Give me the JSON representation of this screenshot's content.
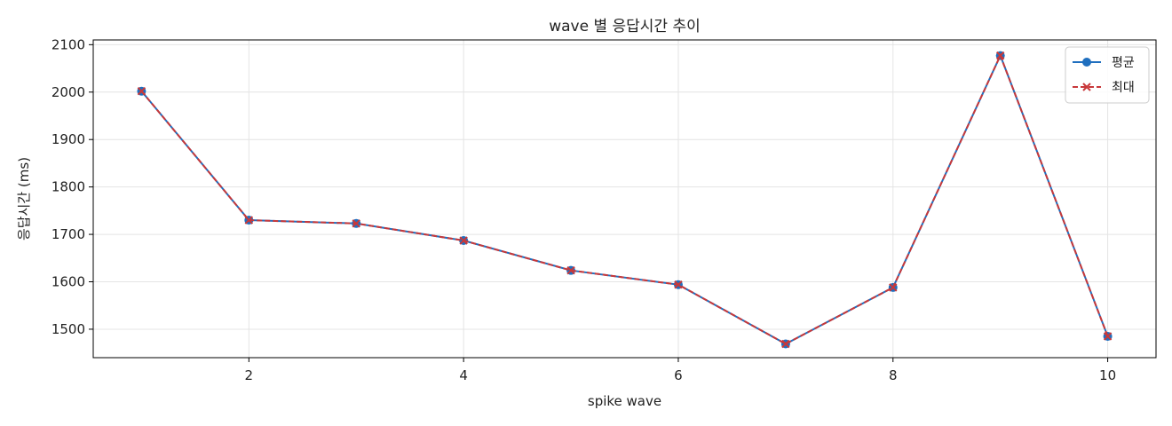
{
  "chart_data": {
    "type": "line",
    "title": "wave 별 응답시간 추이",
    "xlabel": "spike wave",
    "ylabel": "응답시간 (ms)",
    "x": [
      1,
      2,
      3,
      4,
      5,
      6,
      7,
      8,
      9,
      10
    ],
    "xlim": [
      0.55,
      10.45
    ],
    "ylim": [
      1440,
      2110
    ],
    "xticks": [
      2,
      4,
      6,
      8,
      10
    ],
    "yticks": [
      1500,
      1600,
      1700,
      1800,
      1900,
      2000,
      2100
    ],
    "grid": true,
    "legend_position": "top-right",
    "series": [
      {
        "name": "평균",
        "values": [
          2002,
          1730,
          1723,
          1687,
          1624,
          1594,
          1469,
          1588,
          2077,
          1485
        ],
        "color": "#1f6fbf",
        "style": "solid",
        "marker": "circle"
      },
      {
        "name": "최대",
        "values": [
          2002,
          1730,
          1723,
          1687,
          1624,
          1594,
          1469,
          1588,
          2077,
          1485
        ],
        "color": "#c8383a",
        "style": "dashed",
        "marker": "x"
      }
    ]
  }
}
